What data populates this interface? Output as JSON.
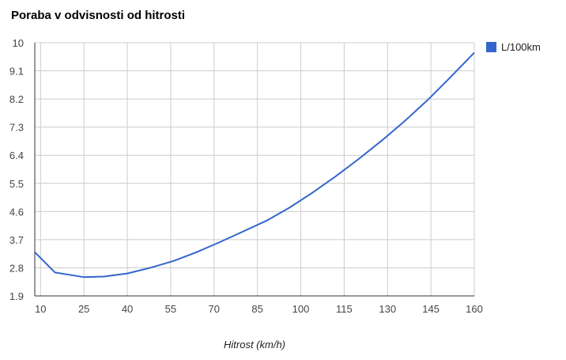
{
  "chart_data": {
    "type": "line",
    "title": "Poraba v odvisnosti od hitrosti",
    "xlabel": "Hitrost (km/h)",
    "ylabel": "",
    "xlim": [
      8,
      160
    ],
    "ylim": [
      1.9,
      10
    ],
    "x_ticks": [
      "10",
      "25",
      "40",
      "55",
      "70",
      "85",
      "100",
      "115",
      "130",
      "145",
      "160"
    ],
    "y_ticks": [
      "1.9",
      "2.8",
      "3.7",
      "4.6",
      "5.5",
      "6.4",
      "7.3",
      "8.2",
      "9.1",
      "10"
    ],
    "grid": true,
    "legend_position": "right",
    "series": [
      {
        "name": "L/100km",
        "color": "#3366cc",
        "x": [
          8,
          15,
          25,
          32,
          40,
          48,
          56,
          64,
          72,
          80,
          88,
          96,
          104,
          112,
          120,
          128,
          136,
          144,
          152,
          160
        ],
        "y": [
          3.3,
          2.65,
          2.5,
          2.52,
          2.62,
          2.8,
          3.02,
          3.3,
          3.62,
          3.96,
          4.3,
          4.72,
          5.2,
          5.72,
          6.28,
          6.87,
          7.5,
          8.18,
          8.92,
          9.68
        ]
      }
    ]
  }
}
